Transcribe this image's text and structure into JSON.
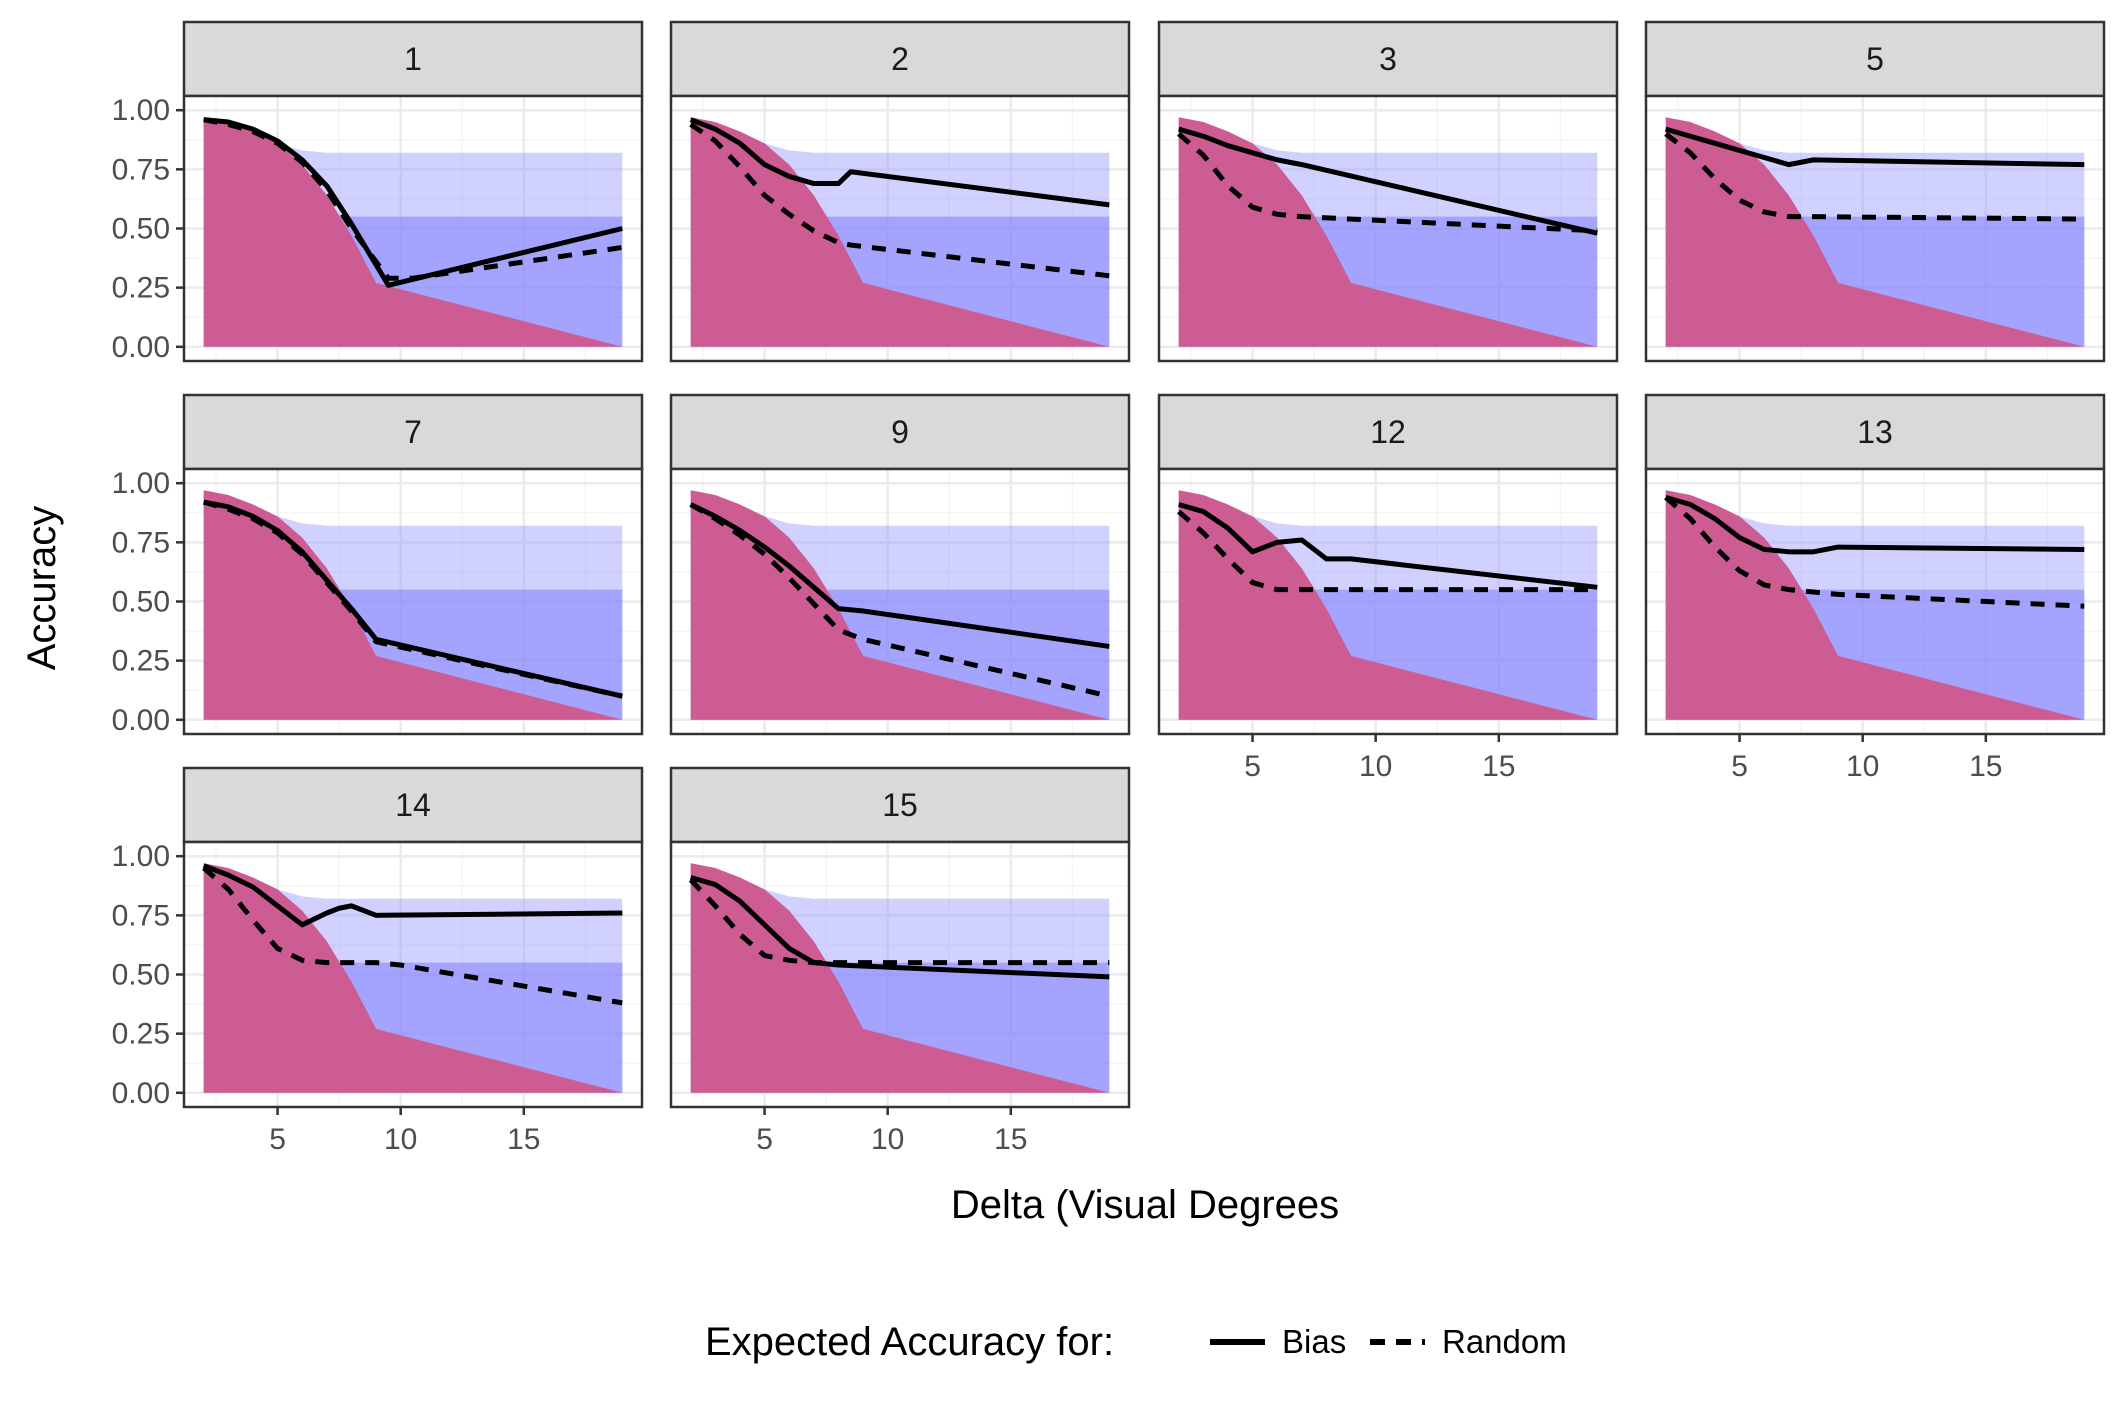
{
  "chart_data": {
    "type": "line",
    "facet_var": "subject",
    "panels": [
      {
        "label": "1",
        "bias": {
          "x": [
            2,
            3,
            4,
            5,
            6,
            7,
            8,
            9.5,
            19
          ],
          "y": [
            0.96,
            0.95,
            0.92,
            0.87,
            0.79,
            0.68,
            0.52,
            0.26,
            0.5
          ]
        },
        "random": {
          "x": [
            2,
            3,
            4,
            5,
            6,
            7,
            8,
            9.5,
            10.5,
            19
          ],
          "y": [
            0.96,
            0.94,
            0.91,
            0.86,
            0.78,
            0.66,
            0.5,
            0.29,
            0.29,
            0.42
          ]
        }
      },
      {
        "label": "2",
        "bias": {
          "x": [
            2,
            3,
            4,
            5,
            6,
            7,
            7.5,
            8,
            8.5,
            19
          ],
          "y": [
            0.96,
            0.92,
            0.86,
            0.77,
            0.72,
            0.69,
            0.69,
            0.69,
            0.74,
            0.6
          ]
        },
        "random": {
          "x": [
            2,
            3,
            4,
            5,
            6,
            7,
            8,
            8.5,
            19
          ],
          "y": [
            0.94,
            0.87,
            0.76,
            0.64,
            0.56,
            0.49,
            0.44,
            0.43,
            0.3
          ]
        }
      },
      {
        "label": "3",
        "bias": {
          "x": [
            2,
            3,
            4,
            5,
            6,
            7,
            19
          ],
          "y": [
            0.92,
            0.89,
            0.85,
            0.82,
            0.79,
            0.77,
            0.48
          ]
        },
        "random": {
          "x": [
            2,
            3,
            4,
            5,
            6,
            7,
            19
          ],
          "y": [
            0.9,
            0.81,
            0.68,
            0.59,
            0.56,
            0.55,
            0.49
          ]
        }
      },
      {
        "label": "5",
        "bias": {
          "x": [
            2,
            3,
            4,
            5,
            6,
            7,
            8,
            19
          ],
          "y": [
            0.92,
            0.89,
            0.86,
            0.83,
            0.8,
            0.77,
            0.79,
            0.77
          ]
        },
        "random": {
          "x": [
            2,
            3,
            4,
            5,
            6,
            7,
            8,
            19
          ],
          "y": [
            0.9,
            0.82,
            0.71,
            0.62,
            0.57,
            0.55,
            0.55,
            0.54
          ]
        }
      },
      {
        "label": "7",
        "bias": {
          "x": [
            2,
            3,
            4,
            5,
            6,
            7,
            8,
            9,
            19
          ],
          "y": [
            0.92,
            0.9,
            0.86,
            0.8,
            0.71,
            0.59,
            0.47,
            0.34,
            0.1
          ]
        },
        "random": {
          "x": [
            2,
            3,
            4,
            5,
            6,
            7,
            8,
            9,
            19
          ],
          "y": [
            0.92,
            0.89,
            0.85,
            0.79,
            0.7,
            0.58,
            0.46,
            0.33,
            0.1
          ]
        }
      },
      {
        "label": "9",
        "bias": {
          "x": [
            2,
            3,
            4,
            5,
            6,
            7,
            8,
            9,
            19
          ],
          "y": [
            0.91,
            0.86,
            0.8,
            0.73,
            0.65,
            0.56,
            0.47,
            0.46,
            0.31
          ]
        },
        "random": {
          "x": [
            2,
            3,
            4,
            5,
            6,
            7,
            8,
            9,
            19
          ],
          "y": [
            0.91,
            0.85,
            0.78,
            0.7,
            0.6,
            0.49,
            0.38,
            0.34,
            0.1
          ]
        }
      },
      {
        "label": "12",
        "bias": {
          "x": [
            2,
            3,
            4,
            5,
            6,
            7,
            7.5,
            8,
            9,
            19
          ],
          "y": [
            0.91,
            0.88,
            0.81,
            0.71,
            0.75,
            0.76,
            0.72,
            0.68,
            0.68,
            0.56
          ]
        },
        "random": {
          "x": [
            2,
            3,
            4,
            5,
            6,
            7,
            8,
            19
          ],
          "y": [
            0.88,
            0.79,
            0.68,
            0.58,
            0.55,
            0.55,
            0.55,
            0.55
          ]
        }
      },
      {
        "label": "13",
        "bias": {
          "x": [
            2,
            3,
            4,
            5,
            6,
            7,
            8,
            9,
            19
          ],
          "y": [
            0.94,
            0.91,
            0.85,
            0.77,
            0.72,
            0.71,
            0.71,
            0.73,
            0.72
          ]
        },
        "random": {
          "x": [
            2,
            3,
            4,
            5,
            6,
            7,
            8,
            9,
            19
          ],
          "y": [
            0.94,
            0.85,
            0.73,
            0.63,
            0.57,
            0.55,
            0.54,
            0.53,
            0.48
          ]
        }
      },
      {
        "label": "14",
        "bias": {
          "x": [
            2,
            3,
            4,
            5,
            6,
            7,
            7.5,
            8,
            9,
            19
          ],
          "y": [
            0.96,
            0.92,
            0.87,
            0.79,
            0.71,
            0.76,
            0.78,
            0.79,
            0.75,
            0.76
          ]
        },
        "random": {
          "x": [
            2,
            3,
            4,
            5,
            6,
            7,
            8,
            9,
            10,
            19
          ],
          "y": [
            0.95,
            0.86,
            0.73,
            0.61,
            0.56,
            0.55,
            0.55,
            0.55,
            0.54,
            0.38
          ]
        }
      },
      {
        "label": "15",
        "bias": {
          "x": [
            2,
            3,
            4,
            5,
            6,
            7,
            8,
            19
          ],
          "y": [
            0.91,
            0.88,
            0.81,
            0.71,
            0.61,
            0.55,
            0.54,
            0.49
          ]
        },
        "random": {
          "x": [
            2,
            3,
            4,
            5,
            6,
            7,
            8,
            19
          ],
          "y": [
            0.9,
            0.79,
            0.67,
            0.58,
            0.56,
            0.55,
            0.55,
            0.55
          ]
        }
      }
    ],
    "bands": {
      "outer_light_blue": {
        "x": [
          2,
          3,
          4,
          5,
          6,
          7,
          19
        ],
        "upper": [
          0.97,
          0.94,
          0.9,
          0.86,
          0.83,
          0.82,
          0.82
        ]
      },
      "inner_blue": {
        "x": [
          2,
          5,
          6,
          19
        ],
        "upper": [
          0.93,
          0.68,
          0.55,
          0.55
        ]
      },
      "magenta": {
        "x": [
          2,
          3,
          4,
          5,
          6,
          7,
          8,
          9,
          19
        ],
        "upper": [
          0.97,
          0.95,
          0.91,
          0.86,
          0.77,
          0.64,
          0.47,
          0.27,
          0.0
        ]
      }
    },
    "xlabel": "Delta (Visual Degrees",
    "ylabel": "Accuracy",
    "x_ticks": [
      5,
      10,
      15
    ],
    "y_ticks": [
      "0.00",
      "0.25",
      "0.50",
      "0.75",
      "1.00"
    ],
    "xlim": [
      1.2,
      19.8
    ],
    "ylim": [
      -0.06,
      1.06
    ],
    "grid": true,
    "legend": {
      "title": "Expected Accuracy for:",
      "position": "bottom",
      "entries": [
        {
          "label": "Bias",
          "linetype": "solid"
        },
        {
          "label": "Random",
          "linetype": "dashed"
        }
      ]
    },
    "colors": {
      "light_band": "#ccccff",
      "mid_band": "#a0a0ff",
      "magenta": "#cc5c92",
      "strip_bg": "#d9d9d9",
      "grid_major": "#ebebeb",
      "grid_minor": "#f5f5f5",
      "panel_border": "#333333",
      "line": "#000000"
    }
  }
}
